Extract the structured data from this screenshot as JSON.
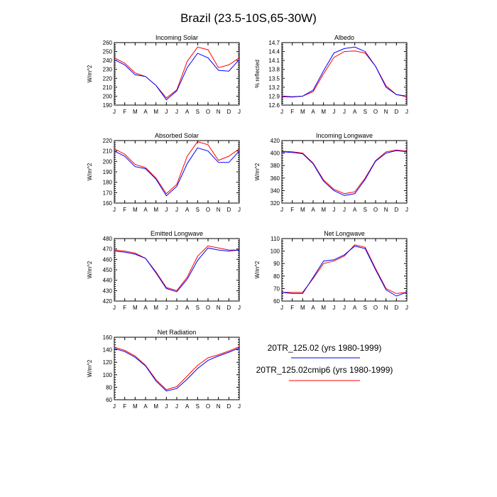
{
  "title": "Brazil (23.5-10S,65-30W)",
  "months": [
    "J",
    "F",
    "M",
    "A",
    "M",
    "J",
    "J",
    "A",
    "S",
    "O",
    "N",
    "D",
    "J"
  ],
  "series_colors": {
    "blue": "#0000ff",
    "red": "#ff0000"
  },
  "legend": [
    {
      "label": "20TR_125.02 (yrs 1980-1999)",
      "color": "#0000ff"
    },
    {
      "label": "20TR_125.02cmip6 (yrs 1980-1999)",
      "color": "#ff0000"
    }
  ],
  "chart_data": [
    {
      "type": "line",
      "title": "Incoming Solar",
      "ylabel": "W/m^2",
      "ylim": [
        190,
        260
      ],
      "yticks": [
        190,
        200,
        210,
        220,
        230,
        240,
        250,
        260
      ],
      "x": [
        "J",
        "F",
        "M",
        "A",
        "M",
        "J",
        "J",
        "A",
        "S",
        "O",
        "N",
        "D",
        "J"
      ],
      "series": [
        {
          "name": "20TR_125.02 (yrs 1980-1999)",
          "values": [
            241,
            235,
            224,
            222,
            212,
            196,
            206,
            232,
            248,
            243,
            229,
            228,
            241
          ]
        },
        {
          "name": "20TR_125.02cmip6 (yrs 1980-1999)",
          "values": [
            243,
            237,
            226,
            222,
            212,
            198,
            207,
            239,
            255,
            252,
            232,
            235,
            243
          ]
        }
      ]
    },
    {
      "type": "line",
      "title": "Albedo",
      "ylabel": "% reflected",
      "ylim": [
        12.6,
        14.7
      ],
      "yticks": [
        "12.6",
        "12.9",
        "13.2",
        "13.5",
        "13.8",
        "14.1",
        "14.4",
        "14.7"
      ],
      "x": [
        "J",
        "F",
        "M",
        "A",
        "M",
        "J",
        "J",
        "A",
        "S",
        "O",
        "N",
        "D",
        "J"
      ],
      "series": [
        {
          "name": "20TR_125.02 (yrs 1980-1999)",
          "values": [
            12.9,
            12.88,
            12.9,
            13.1,
            13.75,
            14.35,
            14.5,
            14.55,
            14.4,
            13.9,
            13.2,
            12.95,
            12.9
          ]
        },
        {
          "name": "20TR_125.02cmip6 (yrs 1980-1999)",
          "values": [
            12.88,
            12.87,
            12.9,
            13.05,
            13.65,
            14.2,
            14.4,
            14.42,
            14.35,
            13.9,
            13.25,
            12.95,
            12.88
          ]
        }
      ]
    },
    {
      "type": "line",
      "title": "Absorbed Solar",
      "ylabel": "W/m^2",
      "ylim": [
        160,
        220
      ],
      "yticks": [
        160,
        170,
        180,
        190,
        200,
        210,
        220
      ],
      "x": [
        "J",
        "F",
        "M",
        "A",
        "M",
        "J",
        "J",
        "A",
        "S",
        "O",
        "N",
        "D",
        "J"
      ],
      "series": [
        {
          "name": "20TR_125.02 (yrs 1980-1999)",
          "values": [
            210,
            205,
            195,
            193,
            183,
            167,
            176,
            198,
            213,
            210,
            199,
            199,
            210
          ]
        },
        {
          "name": "20TR_125.02cmip6 (yrs 1980-1999)",
          "values": [
            212,
            207,
            197,
            194,
            184,
            169,
            178,
            205,
            219,
            216,
            201,
            205,
            212
          ]
        }
      ]
    },
    {
      "type": "line",
      "title": "Incoming Longwave",
      "ylabel": "W/m^2",
      "ylim": [
        320,
        420
      ],
      "yticks": [
        320,
        340,
        360,
        380,
        400,
        420
      ],
      "x": [
        "J",
        "F",
        "M",
        "A",
        "M",
        "J",
        "J",
        "A",
        "S",
        "O",
        "N",
        "D",
        "J"
      ],
      "series": [
        {
          "name": "20TR_125.02 (yrs 1980-1999)",
          "values": [
            402,
            401,
            399,
            383,
            355,
            340,
            332,
            335,
            358,
            387,
            400,
            404,
            402
          ]
        },
        {
          "name": "20TR_125.02cmip6 (yrs 1980-1999)",
          "values": [
            403,
            402,
            400,
            384,
            357,
            342,
            335,
            338,
            360,
            388,
            402,
            405,
            403
          ]
        }
      ]
    },
    {
      "type": "line",
      "title": "Emitted Longwave",
      "ylabel": "W/m^2",
      "ylim": [
        420,
        480
      ],
      "yticks": [
        420,
        430,
        440,
        450,
        460,
        470,
        480
      ],
      "x": [
        "J",
        "F",
        "M",
        "A",
        "M",
        "J",
        "J",
        "A",
        "S",
        "O",
        "N",
        "D",
        "J"
      ],
      "series": [
        {
          "name": "20TR_125.02 (yrs 1980-1999)",
          "values": [
            468,
            467,
            465,
            461,
            447,
            432,
            429,
            441,
            459,
            471,
            469,
            468,
            469
          ]
        },
        {
          "name": "20TR_125.02cmip6 (yrs 1980-1999)",
          "values": [
            469,
            468,
            466,
            461,
            448,
            433,
            430,
            443,
            463,
            473,
            471,
            469,
            469
          ]
        }
      ]
    },
    {
      "type": "line",
      "title": "Net Longwave",
      "ylabel": "W/m^2",
      "ylim": [
        60,
        110
      ],
      "yticks": [
        60,
        70,
        80,
        90,
        100,
        110
      ],
      "x": [
        "J",
        "F",
        "M",
        "A",
        "M",
        "J",
        "J",
        "A",
        "S",
        "O",
        "N",
        "D",
        "J"
      ],
      "series": [
        {
          "name": "20TR_125.02 (yrs 1980-1999)",
          "values": [
            67,
            66,
            66,
            79,
            92,
            93,
            97,
            104,
            102,
            85,
            69,
            64,
            67
          ]
        },
        {
          "name": "20TR_125.02cmip6 (yrs 1980-1999)",
          "values": [
            67,
            67,
            67,
            78,
            90,
            92,
            96,
            105,
            103,
            86,
            70,
            66,
            67
          ]
        }
      ]
    },
    {
      "type": "line",
      "title": "Net Radiation",
      "ylabel": "W/m^2",
      "ylim": [
        60,
        160
      ],
      "yticks": [
        60,
        80,
        100,
        120,
        140,
        160
      ],
      "x": [
        "J",
        "F",
        "M",
        "A",
        "M",
        "J",
        "J",
        "A",
        "S",
        "O",
        "N",
        "D",
        "J"
      ],
      "series": [
        {
          "name": "20TR_125.02 (yrs 1980-1999)",
          "values": [
            142,
            137,
            128,
            114,
            90,
            74,
            78,
            93,
            110,
            123,
            130,
            136,
            143
          ]
        },
        {
          "name": "20TR_125.02cmip6 (yrs 1980-1999)",
          "values": [
            144,
            139,
            130,
            115,
            92,
            76,
            81,
            98,
            115,
            127,
            132,
            138,
            145
          ]
        }
      ]
    }
  ]
}
